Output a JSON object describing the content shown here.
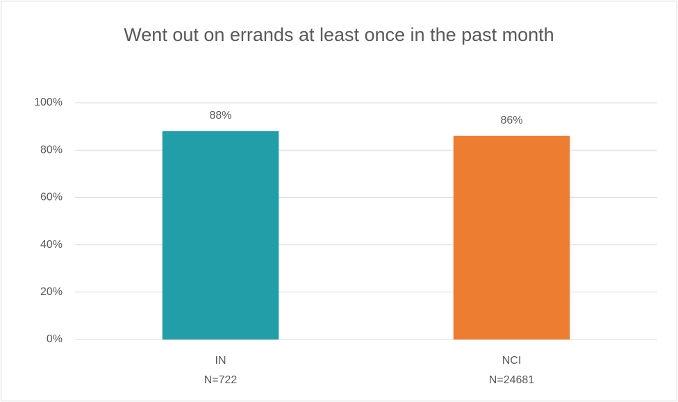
{
  "chart_data": {
    "type": "bar",
    "title": "Went out on errands at least once in the past month",
    "categories": [
      "IN",
      "NCI"
    ],
    "category_sublabels": [
      "N=722",
      "N=24681"
    ],
    "values": [
      88,
      86
    ],
    "value_labels": [
      "88%",
      "86%"
    ],
    "colors": [
      "#219ea8",
      "#ed7d31"
    ],
    "ylim": [
      0,
      100
    ],
    "yticks": [
      {
        "value": 0,
        "label": "0%"
      },
      {
        "value": 20,
        "label": "20%"
      },
      {
        "value": 40,
        "label": "40%"
      },
      {
        "value": 60,
        "label": "60%"
      },
      {
        "value": 80,
        "label": "80%"
      },
      {
        "value": 100,
        "label": "100%"
      }
    ],
    "grid": true
  }
}
